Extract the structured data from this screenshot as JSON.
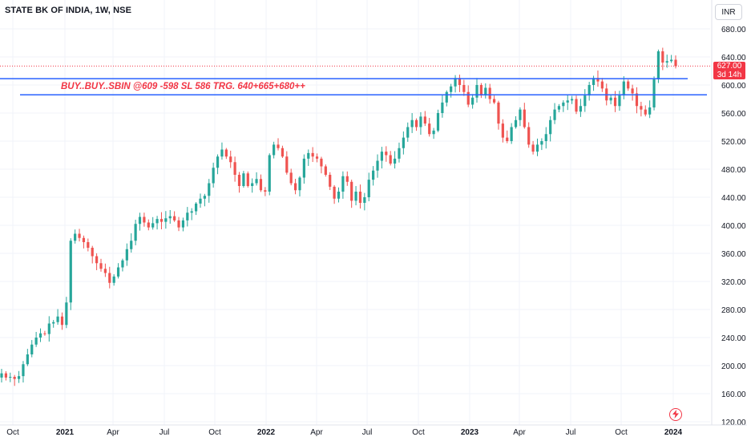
{
  "header": {
    "title": "STATE BK OF INDIA, 1W, NSE"
  },
  "currency_button": {
    "label": "INR"
  },
  "price_tag": {
    "price": "627.00",
    "countdown": "3d 14h"
  },
  "annotation": {
    "text": "BUY..BUY..SBIN @609 -598 SL 586 TRG. 640+665+680++"
  },
  "colors": {
    "up": "#26a69a",
    "down": "#ef5350",
    "trendline": "#2962ff",
    "annotation": "#f23645",
    "price_line": "#f23645"
  },
  "icons": {
    "event": "flash-icon"
  },
  "chart_data": {
    "type": "candlestick",
    "x_ticks": [
      "Oct",
      "2021",
      "Apr",
      "Jul",
      "Oct",
      "2022",
      "Apr",
      "Jul",
      "Oct",
      "2023",
      "Apr",
      "Jul",
      "Oct",
      "2024"
    ],
    "y_ticks": [
      680,
      640,
      600,
      560,
      520,
      480,
      440,
      400,
      360,
      320,
      280,
      240,
      200,
      160,
      120
    ],
    "ylim": [
      120,
      690
    ],
    "last_price": 627,
    "levels": [
      609,
      586
    ],
    "close": [
      189,
      183,
      184,
      181,
      185,
      202,
      216,
      230,
      240,
      246,
      245,
      260,
      262,
      270,
      258,
      290,
      378,
      388,
      382,
      376,
      368,
      356,
      346,
      338,
      332,
      318,
      327,
      340,
      350,
      366,
      378,
      402,
      412,
      404,
      397,
      403,
      409,
      405,
      410,
      413,
      407,
      397,
      407,
      418,
      420,
      431,
      438,
      442,
      460,
      482,
      498,
      508,
      498,
      490,
      472,
      456,
      474,
      456,
      460,
      466,
      450,
      448,
      500,
      515,
      510,
      498,
      475,
      460,
      450,
      468,
      495,
      503,
      498,
      495,
      484,
      472,
      455,
      438,
      448,
      470,
      462,
      435,
      448,
      432,
      440,
      465,
      478,
      492,
      505,
      500,
      488,
      495,
      510,
      525,
      540,
      550,
      540,
      555,
      545,
      530,
      535,
      560,
      575,
      590,
      598,
      610,
      600,
      590,
      572,
      582,
      600,
      585,
      596,
      580,
      575,
      545,
      525,
      520,
      540,
      550,
      565,
      540,
      515,
      505,
      515,
      520,
      530,
      550,
      565,
      570,
      575,
      578,
      580,
      562,
      570,
      585,
      600,
      610,
      605,
      595,
      578,
      582,
      570,
      585,
      605,
      595,
      588,
      570,
      565,
      558,
      568,
      608,
      648,
      632,
      634,
      636,
      627
    ]
  }
}
